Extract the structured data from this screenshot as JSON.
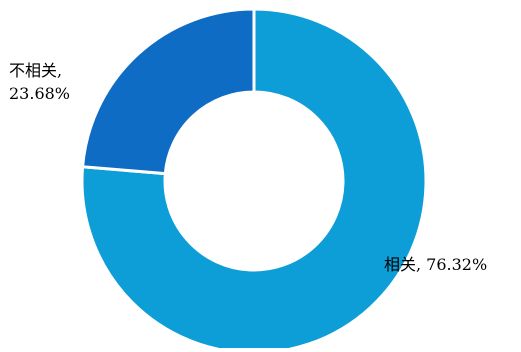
{
  "chart_data": {
    "type": "pie",
    "title": "",
    "legend": "none",
    "categories": [
      "相关",
      "不相关"
    ],
    "values": [
      76.32,
      23.68
    ],
    "labels": [
      "相关, 76.32%",
      "不相关, 23.68%"
    ],
    "label_lines": [
      [
        "相关, 76.32%"
      ],
      [
        "不相关,",
        "23.68%"
      ]
    ],
    "colors": [
      "#0d9ed8",
      "#0f6cc4"
    ],
    "start": "12 o'clock",
    "direction": "clockwise",
    "hole": "large (donut)"
  }
}
